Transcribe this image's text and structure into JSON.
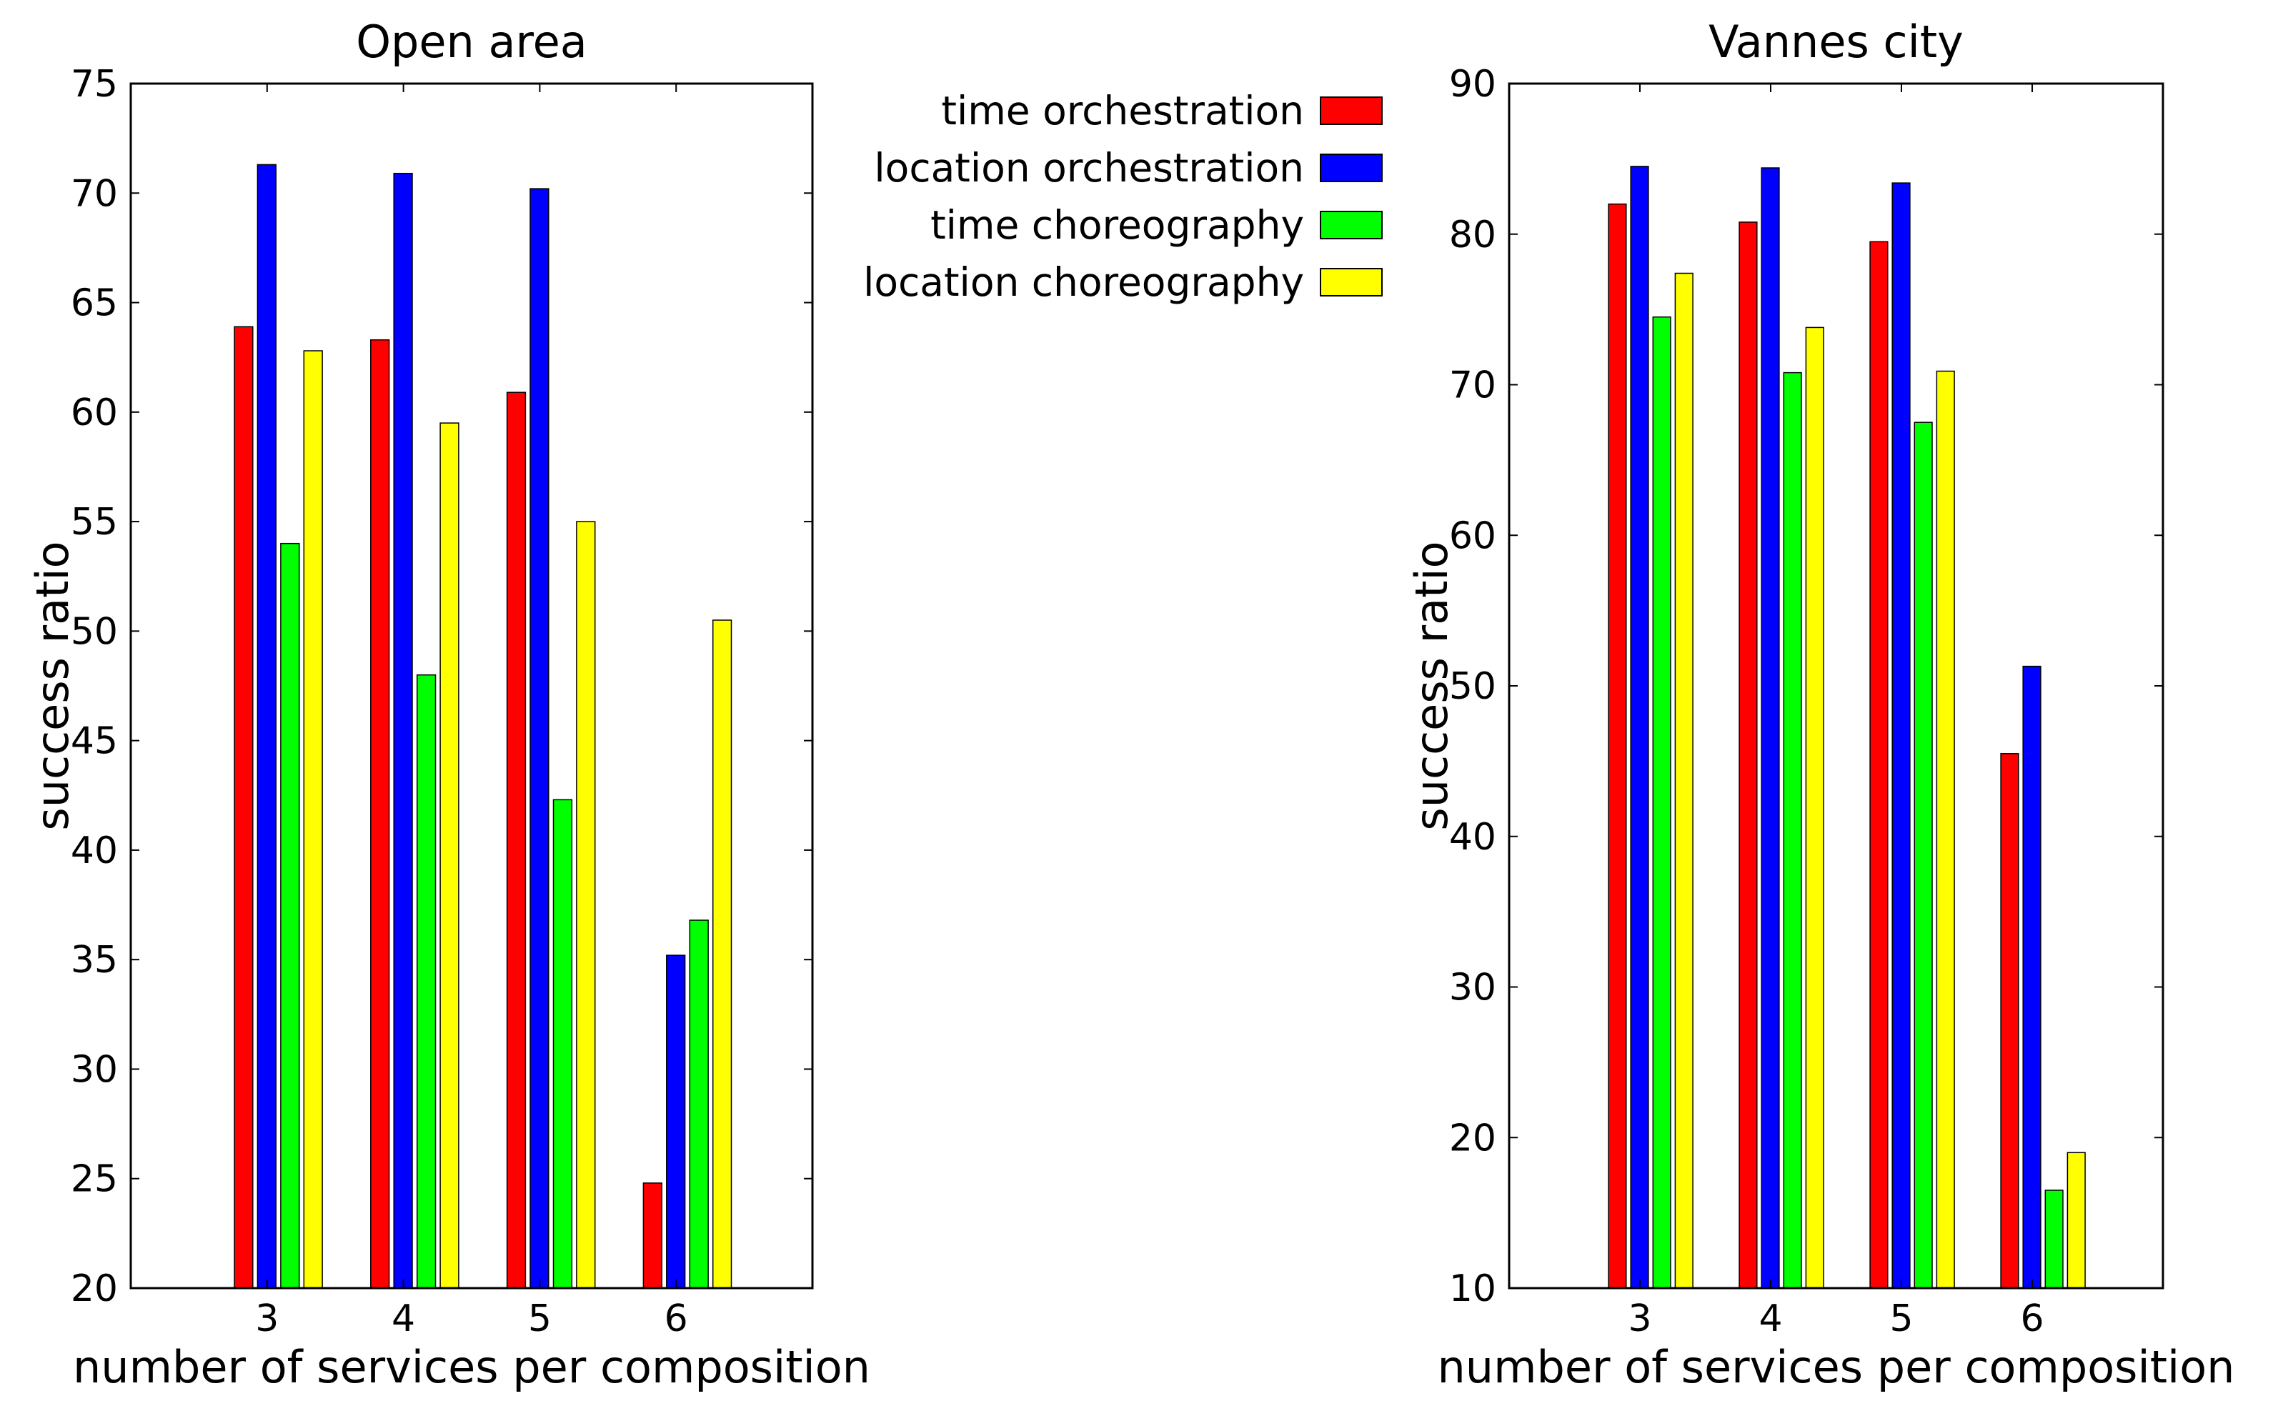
{
  "legend": {
    "series": [
      {
        "label": "time orchestration",
        "color": "#ff0000"
      },
      {
        "label": "location orchestration",
        "color": "#0000ff"
      },
      {
        "label": "time choreography",
        "color": "#00ff00"
      },
      {
        "label": "location choreography",
        "color": "#ffff00"
      }
    ]
  },
  "chart_data": [
    {
      "type": "bar",
      "title": "Open area",
      "xlabel": "number of services per composition",
      "ylabel": "success ratio",
      "categories": [
        "3",
        "4",
        "5",
        "6"
      ],
      "ylim": [
        20,
        75
      ],
      "yticks": [
        20,
        25,
        30,
        35,
        40,
        45,
        50,
        55,
        60,
        65,
        70,
        75
      ],
      "grid": false,
      "series": [
        {
          "name": "time orchestration",
          "values": [
            63.9,
            63.3,
            60.9,
            24.8
          ]
        },
        {
          "name": "location orchestration",
          "values": [
            71.3,
            70.9,
            70.2,
            35.2
          ]
        },
        {
          "name": "time choreography",
          "values": [
            54.0,
            48.0,
            42.3,
            36.8
          ]
        },
        {
          "name": "location choreography",
          "values": [
            62.8,
            59.5,
            55.0,
            50.5
          ]
        }
      ]
    },
    {
      "type": "bar",
      "title": "Vannes city",
      "xlabel": "number of services per composition",
      "ylabel": "success ratio",
      "categories": [
        "3",
        "4",
        "5",
        "6"
      ],
      "ylim": [
        10,
        90
      ],
      "yticks": [
        10,
        20,
        30,
        40,
        50,
        60,
        70,
        80,
        90
      ],
      "grid": false,
      "series": [
        {
          "name": "time orchestration",
          "values": [
            82.0,
            80.8,
            79.5,
            45.5
          ]
        },
        {
          "name": "location orchestration",
          "values": [
            84.5,
            84.4,
            83.4,
            51.3
          ]
        },
        {
          "name": "time choreography",
          "values": [
            74.5,
            70.8,
            67.5,
            16.5
          ]
        },
        {
          "name": "location choreography",
          "values": [
            77.4,
            73.8,
            70.9,
            19.0
          ]
        }
      ]
    }
  ]
}
